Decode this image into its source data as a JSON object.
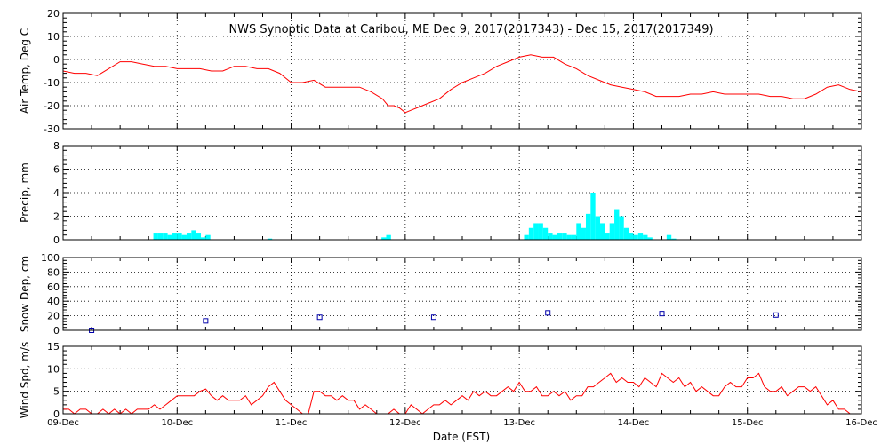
{
  "chart_data": {
    "title": "NWS Synoptic Data at Caribou, ME   Dec  9, 2017(2017343) - Dec 15, 2017(2017349)",
    "xlabel": "Date (EST)",
    "x_tick_labels": [
      "09-Dec",
      "10-Dec",
      "11-Dec",
      "12-Dec",
      "13-Dec",
      "14-Dec",
      "15-Dec",
      "16-Dec"
    ],
    "x_range_days": [
      0,
      7
    ],
    "colors": {
      "temp": "#ff0000",
      "precip": "#00ffff",
      "snow": "#0000aa",
      "wind": "#ff0000"
    },
    "panels": [
      {
        "id": "temp",
        "type": "line",
        "ylabel": "Air Temp, Deg C",
        "ylim": [
          -30,
          20
        ],
        "yticks": [
          -30,
          -20,
          -10,
          0,
          10,
          20
        ],
        "x": [
          0,
          0.1,
          0.2,
          0.3,
          0.4,
          0.5,
          0.6,
          0.7,
          0.8,
          0.9,
          1.0,
          1.1,
          1.2,
          1.3,
          1.4,
          1.5,
          1.6,
          1.7,
          1.8,
          1.9,
          2.0,
          2.1,
          2.2,
          2.3,
          2.4,
          2.5,
          2.6,
          2.7,
          2.8,
          2.85,
          2.9,
          2.95,
          3.0,
          3.05,
          3.1,
          3.2,
          3.3,
          3.4,
          3.5,
          3.6,
          3.7,
          3.8,
          3.9,
          4.0,
          4.1,
          4.2,
          4.3,
          4.4,
          4.5,
          4.6,
          4.7,
          4.8,
          4.9,
          5.0,
          5.1,
          5.2,
          5.3,
          5.4,
          5.5,
          5.6,
          5.7,
          5.8,
          5.9,
          6.0,
          6.1,
          6.2,
          6.3,
          6.4,
          6.5,
          6.6,
          6.7,
          6.8,
          6.9,
          7.0
        ],
        "values": [
          -5,
          -6,
          -6,
          -7,
          -4,
          -1,
          -1,
          -2,
          -3,
          -3,
          -4,
          -4,
          -4,
          -5,
          -5,
          -3,
          -3,
          -4,
          -4,
          -6,
          -10,
          -10,
          -9,
          -12,
          -12,
          -12,
          -12,
          -14,
          -17,
          -20,
          -20,
          -21,
          -23,
          -22,
          -21,
          -19,
          -17,
          -13,
          -10,
          -8,
          -6,
          -3,
          -1,
          1,
          2,
          1,
          1,
          -2,
          -4,
          -7,
          -9,
          -11,
          -12,
          -13,
          -14,
          -16,
          -16,
          -16,
          -15,
          -15,
          -14,
          -15,
          -15,
          -15,
          -15,
          -16,
          -16,
          -17,
          -17,
          -15,
          -12,
          -11,
          -13,
          -14
        ]
      },
      {
        "id": "precip",
        "type": "bar",
        "ylabel": "Precip, mm",
        "ylim": [
          0,
          8
        ],
        "yticks": [
          0,
          2,
          4,
          6,
          8
        ],
        "bin_hours": 1,
        "start_hours": [
          19,
          20,
          21,
          22,
          23,
          24,
          25,
          26,
          27,
          28,
          29,
          30,
          43,
          67,
          68,
          97,
          98,
          99,
          100,
          101,
          102,
          103,
          104,
          105,
          106,
          107,
          108,
          109,
          110,
          111,
          112,
          113,
          114,
          115,
          116,
          117,
          118,
          119,
          120,
          121,
          122,
          123,
          124,
          127,
          128
        ],
        "values": [
          0.6,
          0.6,
          0.6,
          0.4,
          0.6,
          0.6,
          0.4,
          0.6,
          0.8,
          0.6,
          0.2,
          0.4,
          0.1,
          0.2,
          0.4,
          0.4,
          1.0,
          1.4,
          1.4,
          1.0,
          0.6,
          0.4,
          0.6,
          0.6,
          0.4,
          0.4,
          1.4,
          1.0,
          2.2,
          4.0,
          2.0,
          1.4,
          0.6,
          1.4,
          2.6,
          2.0,
          1.0,
          0.6,
          0.4,
          0.6,
          0.4,
          0.2,
          0.0,
          0.4,
          0.1
        ]
      },
      {
        "id": "snow",
        "type": "scatter",
        "ylabel": "Snow Dep, cm",
        "ylim": [
          0,
          100
        ],
        "yticks": [
          0,
          20,
          40,
          60,
          80,
          100
        ],
        "x": [
          0.25,
          1.25,
          2.25,
          3.25,
          4.25,
          5.25,
          6.25
        ],
        "values": [
          0,
          13,
          18,
          18,
          24,
          23,
          21
        ]
      },
      {
        "id": "wind",
        "type": "line",
        "ylabel": "Wind Spd, m/s",
        "ylim": [
          0,
          15
        ],
        "yticks": [
          0,
          5,
          10,
          15
        ],
        "x": [
          0,
          0.05,
          0.1,
          0.15,
          0.2,
          0.25,
          0.3,
          0.35,
          0.4,
          0.45,
          0.5,
          0.55,
          0.6,
          0.65,
          0.7,
          0.75,
          0.8,
          0.85,
          0.9,
          0.95,
          1.0,
          1.05,
          1.1,
          1.15,
          1.2,
          1.25,
          1.3,
          1.35,
          1.4,
          1.45,
          1.5,
          1.55,
          1.6,
          1.65,
          1.7,
          1.75,
          1.8,
          1.85,
          1.9,
          1.95,
          2.0,
          2.05,
          2.1,
          2.15,
          2.2,
          2.25,
          2.3,
          2.35,
          2.4,
          2.45,
          2.5,
          2.55,
          2.6,
          2.65,
          2.7,
          2.75,
          2.8,
          2.85,
          2.9,
          2.95,
          3.0,
          3.05,
          3.1,
          3.15,
          3.2,
          3.25,
          3.3,
          3.35,
          3.4,
          3.45,
          3.5,
          3.55,
          3.6,
          3.65,
          3.7,
          3.75,
          3.8,
          3.85,
          3.9,
          3.95,
          4.0,
          4.05,
          4.1,
          4.15,
          4.2,
          4.25,
          4.3,
          4.35,
          4.4,
          4.45,
          4.5,
          4.55,
          4.6,
          4.65,
          4.7,
          4.75,
          4.8,
          4.85,
          4.9,
          4.95,
          5.0,
          5.05,
          5.1,
          5.15,
          5.2,
          5.25,
          5.3,
          5.35,
          5.4,
          5.45,
          5.5,
          5.55,
          5.6,
          5.65,
          5.7,
          5.75,
          5.8,
          5.85,
          5.9,
          5.95,
          6.0,
          6.05,
          6.1,
          6.15,
          6.2,
          6.25,
          6.3,
          6.35,
          6.4,
          6.45,
          6.5,
          6.55,
          6.6,
          6.65,
          6.7,
          6.75,
          6.8,
          6.85,
          6.9,
          6.95,
          7.0
        ],
        "values": [
          1,
          1,
          0,
          1,
          1,
          0,
          0,
          1,
          0,
          1,
          0,
          1,
          0,
          1,
          1,
          1,
          2,
          1,
          2,
          3,
          4,
          4,
          4,
          4,
          5,
          5.5,
          4,
          3,
          4,
          3,
          3,
          3,
          4,
          2,
          3,
          4,
          6,
          7,
          5,
          3,
          2,
          1,
          0,
          0,
          5,
          5,
          4,
          4,
          3,
          4,
          3,
          3,
          1,
          2,
          1,
          0,
          0,
          0,
          1,
          0,
          0,
          2,
          1,
          0,
          1,
          2,
          2,
          3,
          2,
          3,
          4,
          3,
          5,
          4,
          5,
          4,
          4,
          5,
          6,
          5,
          7,
          5,
          5,
          6,
          4,
          4,
          5,
          4,
          5,
          3,
          4,
          4,
          6,
          6,
          7,
          8,
          9,
          7,
          8,
          7,
          7,
          6,
          8,
          7,
          6,
          9,
          8,
          7,
          8,
          6,
          7,
          5,
          6,
          5,
          4,
          4,
          6,
          7,
          6,
          6,
          8,
          8,
          9,
          6,
          5,
          5,
          6,
          4,
          5,
          6,
          6,
          5,
          6,
          4,
          2,
          3,
          1,
          1,
          0,
          0,
          0
        ]
      }
    ]
  }
}
